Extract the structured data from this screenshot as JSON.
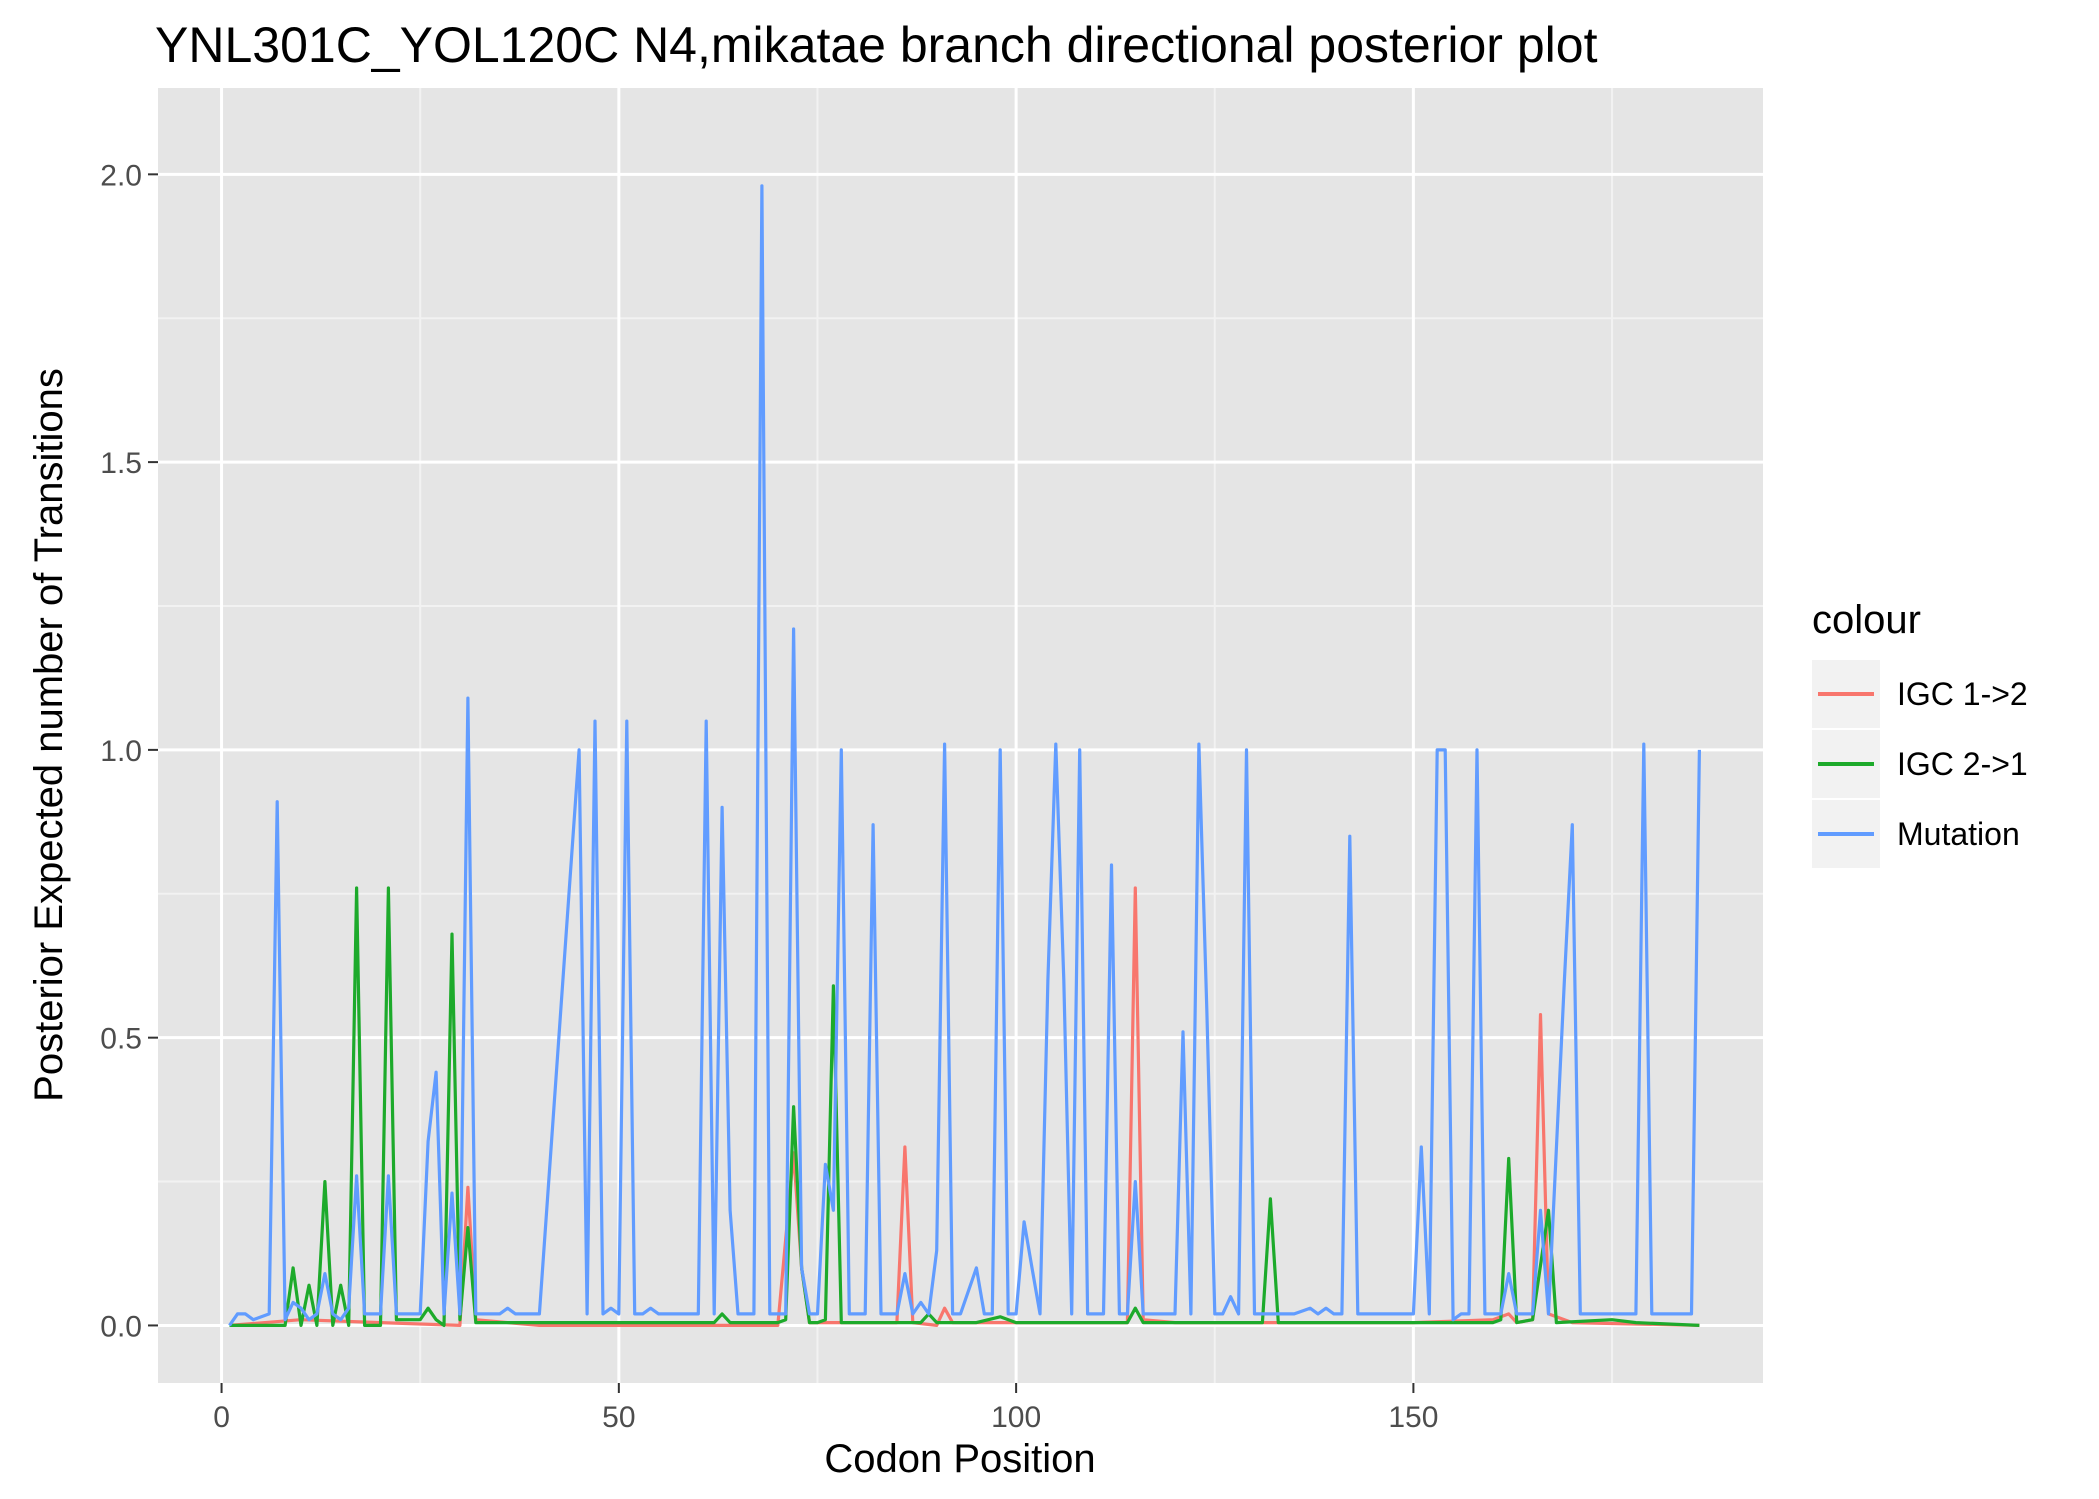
{
  "chart_data": {
    "type": "line",
    "title": "YNL301C_YOL120C N4,mikatae branch directional posterior plot",
    "xlabel": "Codon Position",
    "ylabel": "Posterior Expected number of Transitions",
    "xlim": [
      -8,
      194
    ],
    "ylim": [
      -0.1,
      2.15
    ],
    "xticks": [
      0,
      50,
      100,
      150
    ],
    "yticks": [
      0.0,
      0.5,
      1.0,
      1.5,
      2.0
    ],
    "xtick_labels": [
      "0",
      "50",
      "100",
      "150"
    ],
    "ytick_labels": [
      "0.0",
      "0.5",
      "1.0",
      "1.5",
      "2.0"
    ],
    "grid": true,
    "background": "#e5e5e5",
    "legend": {
      "title": "colour",
      "position": "right",
      "entries": [
        "IGC 1->2",
        "IGC 2->1",
        "Mutation"
      ]
    },
    "series": [
      {
        "name": "IGC 1->2",
        "color": "#f8766d",
        "points": [
          [
            1,
            0
          ],
          [
            10,
            0.01
          ],
          [
            20,
            0.005
          ],
          [
            30,
            0
          ],
          [
            31,
            0.24
          ],
          [
            32,
            0.01
          ],
          [
            40,
            0
          ],
          [
            60,
            0
          ],
          [
            70,
            0
          ],
          [
            72,
            0.3
          ],
          [
            73,
            0.1
          ],
          [
            74,
            0.005
          ],
          [
            85,
            0.005
          ],
          [
            86,
            0.31
          ],
          [
            87,
            0.005
          ],
          [
            90,
            0
          ],
          [
            91,
            0.03
          ],
          [
            92,
            0.005
          ],
          [
            100,
            0.005
          ],
          [
            113,
            0.005
          ],
          [
            114,
            0.005
          ],
          [
            115,
            0.76
          ],
          [
            116,
            0.01
          ],
          [
            120,
            0.005
          ],
          [
            150,
            0.005
          ],
          [
            160,
            0.01
          ],
          [
            162,
            0.02
          ],
          [
            163,
            0.005
          ],
          [
            165,
            0.01
          ],
          [
            166,
            0.54
          ],
          [
            167,
            0.02
          ],
          [
            170,
            0.005
          ],
          [
            186,
            0
          ]
        ]
      },
      {
        "name": "IGC 2->1",
        "color": "#1daa2b",
        "points": [
          [
            1,
            0
          ],
          [
            8,
            0
          ],
          [
            9,
            0.1
          ],
          [
            10,
            0
          ],
          [
            11,
            0.07
          ],
          [
            12,
            0
          ],
          [
            13,
            0.25
          ],
          [
            14,
            0
          ],
          [
            15,
            0.07
          ],
          [
            16,
            0
          ],
          [
            17,
            0.76
          ],
          [
            18,
            0
          ],
          [
            20,
            0
          ],
          [
            21,
            0.76
          ],
          [
            22,
            0.01
          ],
          [
            25,
            0.01
          ],
          [
            26,
            0.03
          ],
          [
            27,
            0.01
          ],
          [
            28,
            0
          ],
          [
            29,
            0.68
          ],
          [
            30,
            0.01
          ],
          [
            31,
            0.17
          ],
          [
            32,
            0.005
          ],
          [
            50,
            0.005
          ],
          [
            60,
            0.005
          ],
          [
            62,
            0.005
          ],
          [
            63,
            0.02
          ],
          [
            64,
            0.005
          ],
          [
            70,
            0.005
          ],
          [
            71,
            0.01
          ],
          [
            72,
            0.38
          ],
          [
            73,
            0.1
          ],
          [
            74,
            0.005
          ],
          [
            75,
            0.005
          ],
          [
            76,
            0.01
          ],
          [
            77,
            0.59
          ],
          [
            78,
            0.005
          ],
          [
            88,
            0.005
          ],
          [
            89,
            0.02
          ],
          [
            90,
            0.005
          ],
          [
            95,
            0.005
          ],
          [
            98,
            0.015
          ],
          [
            100,
            0.005
          ],
          [
            113,
            0.005
          ],
          [
            114,
            0.005
          ],
          [
            115,
            0.03
          ],
          [
            116,
            0.005
          ],
          [
            130,
            0.005
          ],
          [
            131,
            0.005
          ],
          [
            132,
            0.22
          ],
          [
            133,
            0.005
          ],
          [
            150,
            0.005
          ],
          [
            155,
            0.005
          ],
          [
            160,
            0.005
          ],
          [
            161,
            0.01
          ],
          [
            162,
            0.29
          ],
          [
            163,
            0.005
          ],
          [
            165,
            0.01
          ],
          [
            167,
            0.2
          ],
          [
            168,
            0.005
          ],
          [
            175,
            0.01
          ],
          [
            178,
            0.005
          ],
          [
            186,
            0
          ]
        ]
      },
      {
        "name": "Mutation",
        "color": "#619cff",
        "points": [
          [
            1,
            0
          ],
          [
            2,
            0.02
          ],
          [
            3,
            0.02
          ],
          [
            4,
            0.01
          ],
          [
            6,
            0.02
          ],
          [
            7,
            0.91
          ],
          [
            8,
            0.01
          ],
          [
            9,
            0.04
          ],
          [
            10,
            0.03
          ],
          [
            11,
            0.01
          ],
          [
            12,
            0.02
          ],
          [
            13,
            0.09
          ],
          [
            14,
            0.02
          ],
          [
            15,
            0.01
          ],
          [
            16,
            0.03
          ],
          [
            17,
            0.26
          ],
          [
            18,
            0.02
          ],
          [
            20,
            0.02
          ],
          [
            21,
            0.26
          ],
          [
            22,
            0.02
          ],
          [
            25,
            0.02
          ],
          [
            26,
            0.32
          ],
          [
            27,
            0.44
          ],
          [
            28,
            0.02
          ],
          [
            29,
            0.23
          ],
          [
            30,
            0.02
          ],
          [
            31,
            1.09
          ],
          [
            32,
            0.02
          ],
          [
            35,
            0.02
          ],
          [
            36,
            0.03
          ],
          [
            37,
            0.02
          ],
          [
            40,
            0.02
          ],
          [
            45,
            1.0
          ],
          [
            46,
            0.02
          ],
          [
            47,
            1.05
          ],
          [
            48,
            0.02
          ],
          [
            49,
            0.03
          ],
          [
            50,
            0.02
          ],
          [
            51,
            1.05
          ],
          [
            52,
            0.02
          ],
          [
            53,
            0.02
          ],
          [
            54,
            0.03
          ],
          [
            55,
            0.02
          ],
          [
            60,
            0.02
          ],
          [
            61,
            1.05
          ],
          [
            62,
            0.02
          ],
          [
            63,
            0.9
          ],
          [
            64,
            0.2
          ],
          [
            65,
            0.02
          ],
          [
            66,
            0.02
          ],
          [
            67,
            0.02
          ],
          [
            68,
            1.98
          ],
          [
            69,
            0.02
          ],
          [
            70,
            0.02
          ],
          [
            71,
            0.02
          ],
          [
            72,
            1.21
          ],
          [
            73,
            0.1
          ],
          [
            74,
            0.02
          ],
          [
            75,
            0.02
          ],
          [
            76,
            0.28
          ],
          [
            77,
            0.2
          ],
          [
            78,
            1.0
          ],
          [
            79,
            0.02
          ],
          [
            81,
            0.02
          ],
          [
            82,
            0.87
          ],
          [
            83,
            0.02
          ],
          [
            84,
            0.02
          ],
          [
            85,
            0.02
          ],
          [
            86,
            0.09
          ],
          [
            87,
            0.02
          ],
          [
            88,
            0.04
          ],
          [
            89,
            0.02
          ],
          [
            90,
            0.13
          ],
          [
            91,
            1.01
          ],
          [
            92,
            0.02
          ],
          [
            93,
            0.02
          ],
          [
            95,
            0.1
          ],
          [
            96,
            0.02
          ],
          [
            97,
            0.02
          ],
          [
            98,
            1.0
          ],
          [
            99,
            0.02
          ],
          [
            100,
            0.02
          ],
          [
            101,
            0.18
          ],
          [
            102,
            0.1
          ],
          [
            103,
            0.02
          ],
          [
            104,
            0.6
          ],
          [
            105,
            1.01
          ],
          [
            106,
            0.6
          ],
          [
            107,
            0.02
          ],
          [
            108,
            1.0
          ],
          [
            109,
            0.02
          ],
          [
            110,
            0.02
          ],
          [
            111,
            0.02
          ],
          [
            112,
            0.8
          ],
          [
            113,
            0.02
          ],
          [
            114,
            0.02
          ],
          [
            115,
            0.25
          ],
          [
            116,
            0.02
          ],
          [
            117,
            0.02
          ],
          [
            120,
            0.02
          ],
          [
            121,
            0.51
          ],
          [
            122,
            0.02
          ],
          [
            123,
            1.01
          ],
          [
            124,
            0.55
          ],
          [
            125,
            0.02
          ],
          [
            126,
            0.02
          ],
          [
            127,
            0.05
          ],
          [
            128,
            0.02
          ],
          [
            129,
            1.0
          ],
          [
            130,
            0.02
          ],
          [
            133,
            0.02
          ],
          [
            134,
            0.02
          ],
          [
            135,
            0.02
          ],
          [
            137,
            0.03
          ],
          [
            138,
            0.02
          ],
          [
            139,
            0.03
          ],
          [
            140,
            0.02
          ],
          [
            141,
            0.02
          ],
          [
            142,
            0.85
          ],
          [
            143,
            0.02
          ],
          [
            145,
            0.02
          ],
          [
            147,
            0.02
          ],
          [
            150,
            0.02
          ],
          [
            151,
            0.31
          ],
          [
            152,
            0.02
          ],
          [
            153,
            1.0
          ],
          [
            154,
            1.0
          ],
          [
            155,
            0.01
          ],
          [
            156,
            0.02
          ],
          [
            157,
            0.02
          ],
          [
            158,
            1.0
          ],
          [
            159,
            0.02
          ],
          [
            161,
            0.02
          ],
          [
            162,
            0.09
          ],
          [
            163,
            0.02
          ],
          [
            164,
            0.02
          ],
          [
            165,
            0.02
          ],
          [
            166,
            0.2
          ],
          [
            167,
            0.02
          ],
          [
            169,
            0.6
          ],
          [
            170,
            0.87
          ],
          [
            171,
            0.02
          ],
          [
            175,
            0.02
          ],
          [
            176,
            0.02
          ],
          [
            177,
            0.02
          ],
          [
            178,
            0.02
          ],
          [
            179,
            1.01
          ],
          [
            180,
            0.02
          ],
          [
            182,
            0.02
          ],
          [
            183,
            0.02
          ],
          [
            184,
            0.02
          ],
          [
            185,
            0.02
          ],
          [
            186,
            1.0
          ]
        ]
      }
    ]
  }
}
